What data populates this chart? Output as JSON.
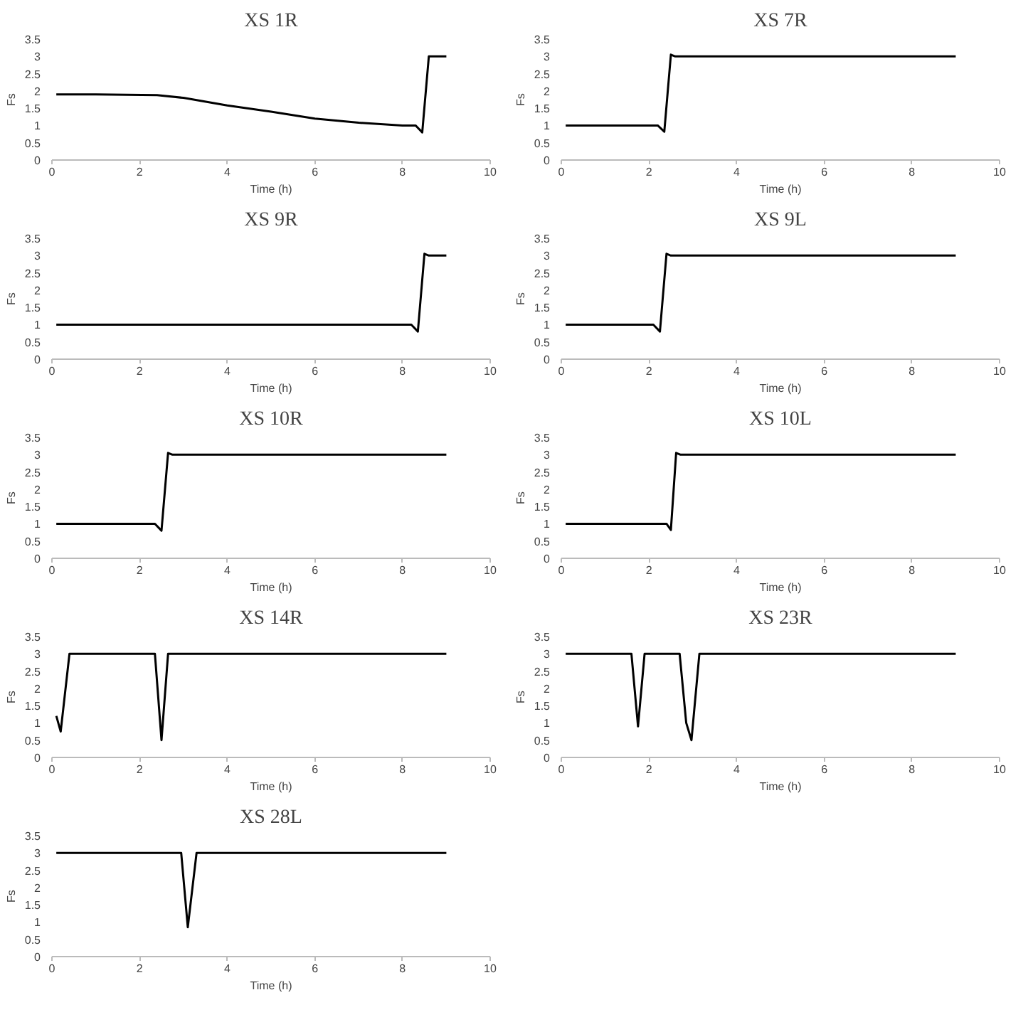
{
  "chart_data": [
    {
      "type": "line",
      "title": "XS 1R",
      "xlabel": "Time (h)",
      "ylabel": "Fs",
      "xlim": [
        0,
        10
      ],
      "ylim": [
        0,
        3.5
      ],
      "xticks": [
        0,
        2,
        4,
        6,
        8,
        10
      ],
      "yticks": [
        0,
        0.5,
        1,
        1.5,
        2,
        2.5,
        3,
        3.5
      ],
      "x": [
        0.1,
        1,
        2.4,
        3,
        4,
        5,
        6,
        7,
        8,
        8.3,
        8.45,
        8.6,
        9
      ],
      "series": [
        {
          "color": "#000000",
          "values": [
            1.9,
            1.9,
            1.88,
            1.8,
            1.58,
            1.4,
            1.2,
            1.08,
            1.0,
            1.0,
            0.8,
            3.0,
            3.0
          ]
        }
      ]
    },
    {
      "type": "line",
      "title": "XS 7R",
      "xlabel": "Time (h)",
      "ylabel": "Fs",
      "xlim": [
        0,
        10
      ],
      "ylim": [
        0,
        3.5
      ],
      "xticks": [
        0,
        2,
        4,
        6,
        8,
        10
      ],
      "yticks": [
        0,
        0.5,
        1,
        1.5,
        2,
        2.5,
        3,
        3.5
      ],
      "x": [
        0.1,
        2.2,
        2.35,
        2.5,
        2.6,
        9
      ],
      "series": [
        {
          "color": "#000000",
          "values": [
            1,
            1,
            0.82,
            3.05,
            3,
            3
          ]
        }
      ]
    },
    {
      "type": "line",
      "title": "XS 9R",
      "xlabel": "Time (h)",
      "ylabel": "Fs",
      "xlim": [
        0,
        10
      ],
      "ylim": [
        0,
        3.5
      ],
      "xticks": [
        0,
        2,
        4,
        6,
        8,
        10
      ],
      "yticks": [
        0,
        0.5,
        1,
        1.5,
        2,
        2.5,
        3,
        3.5
      ],
      "x": [
        0.1,
        8.2,
        8.35,
        8.5,
        8.6,
        9
      ],
      "series": [
        {
          "color": "#000000",
          "values": [
            1,
            1,
            0.8,
            3.05,
            3,
            3
          ]
        }
      ]
    },
    {
      "type": "line",
      "title": "XS 9L",
      "xlabel": "Time (h)",
      "ylabel": "Fs",
      "xlim": [
        0,
        10
      ],
      "ylim": [
        0,
        3.5
      ],
      "xticks": [
        0,
        2,
        4,
        6,
        8,
        10
      ],
      "yticks": [
        0,
        0.5,
        1,
        1.5,
        2,
        2.5,
        3,
        3.5
      ],
      "x": [
        0.1,
        2.1,
        2.25,
        2.4,
        2.5,
        9
      ],
      "series": [
        {
          "color": "#000000",
          "values": [
            1,
            1,
            0.8,
            3.05,
            3,
            3
          ]
        }
      ]
    },
    {
      "type": "line",
      "title": "XS 10R",
      "xlabel": "Time (h)",
      "ylabel": "Fs",
      "xlim": [
        0,
        10
      ],
      "ylim": [
        0,
        3.5
      ],
      "xticks": [
        0,
        2,
        4,
        6,
        8,
        10
      ],
      "yticks": [
        0,
        0.5,
        1,
        1.5,
        2,
        2.5,
        3,
        3.5
      ],
      "x": [
        0.1,
        2.35,
        2.5,
        2.65,
        2.75,
        9
      ],
      "series": [
        {
          "color": "#000000",
          "values": [
            1,
            1,
            0.8,
            3.05,
            3,
            3
          ]
        }
      ]
    },
    {
      "type": "line",
      "title": "XS 10L",
      "xlabel": "Time (h)",
      "ylabel": "Fs",
      "xlim": [
        0,
        10
      ],
      "ylim": [
        0,
        3.5
      ],
      "xticks": [
        0,
        2,
        4,
        6,
        8,
        10
      ],
      "yticks": [
        0,
        0.5,
        1,
        1.5,
        2,
        2.5,
        3,
        3.5
      ],
      "x": [
        0.1,
        2.4,
        2.5,
        2.62,
        2.72,
        9
      ],
      "series": [
        {
          "color": "#000000",
          "values": [
            1,
            1,
            0.82,
            3.05,
            3,
            3
          ]
        }
      ]
    },
    {
      "type": "line",
      "title": "XS 14R",
      "xlabel": "Time (h)",
      "ylabel": "Fs",
      "xlim": [
        0,
        10
      ],
      "ylim": [
        0,
        3.5
      ],
      "xticks": [
        0,
        2,
        4,
        6,
        8,
        10
      ],
      "yticks": [
        0,
        0.5,
        1,
        1.5,
        2,
        2.5,
        3,
        3.5
      ],
      "x": [
        0.1,
        0.2,
        0.4,
        0.5,
        2.35,
        2.5,
        2.65,
        9
      ],
      "series": [
        {
          "color": "#000000",
          "values": [
            1.2,
            0.75,
            3,
            3,
            3,
            0.5,
            3,
            3
          ]
        }
      ]
    },
    {
      "type": "line",
      "title": "XS 23R",
      "xlabel": "Time (h)",
      "ylabel": "Fs",
      "xlim": [
        0,
        10
      ],
      "ylim": [
        0,
        3.5
      ],
      "xticks": [
        0,
        2,
        4,
        6,
        8,
        10
      ],
      "yticks": [
        0,
        0.5,
        1,
        1.5,
        2,
        2.5,
        3,
        3.5
      ],
      "x": [
        0.1,
        1.6,
        1.75,
        1.9,
        2.7,
        2.85,
        2.97,
        3.15,
        9
      ],
      "series": [
        {
          "color": "#000000",
          "values": [
            3,
            3,
            0.9,
            3,
            3,
            1.0,
            0.5,
            3,
            3
          ]
        }
      ]
    },
    {
      "type": "line",
      "title": "XS 28L",
      "xlabel": "Time (h)",
      "ylabel": "Fs",
      "xlim": [
        0,
        10
      ],
      "ylim": [
        0,
        3.5
      ],
      "xticks": [
        0,
        2,
        4,
        6,
        8,
        10
      ],
      "yticks": [
        0,
        0.5,
        1,
        1.5,
        2,
        2.5,
        3,
        3.5
      ],
      "x": [
        0.1,
        2.95,
        3.1,
        3.3,
        9
      ],
      "series": [
        {
          "color": "#000000",
          "values": [
            3,
            3,
            0.85,
            3,
            3
          ]
        }
      ]
    }
  ]
}
